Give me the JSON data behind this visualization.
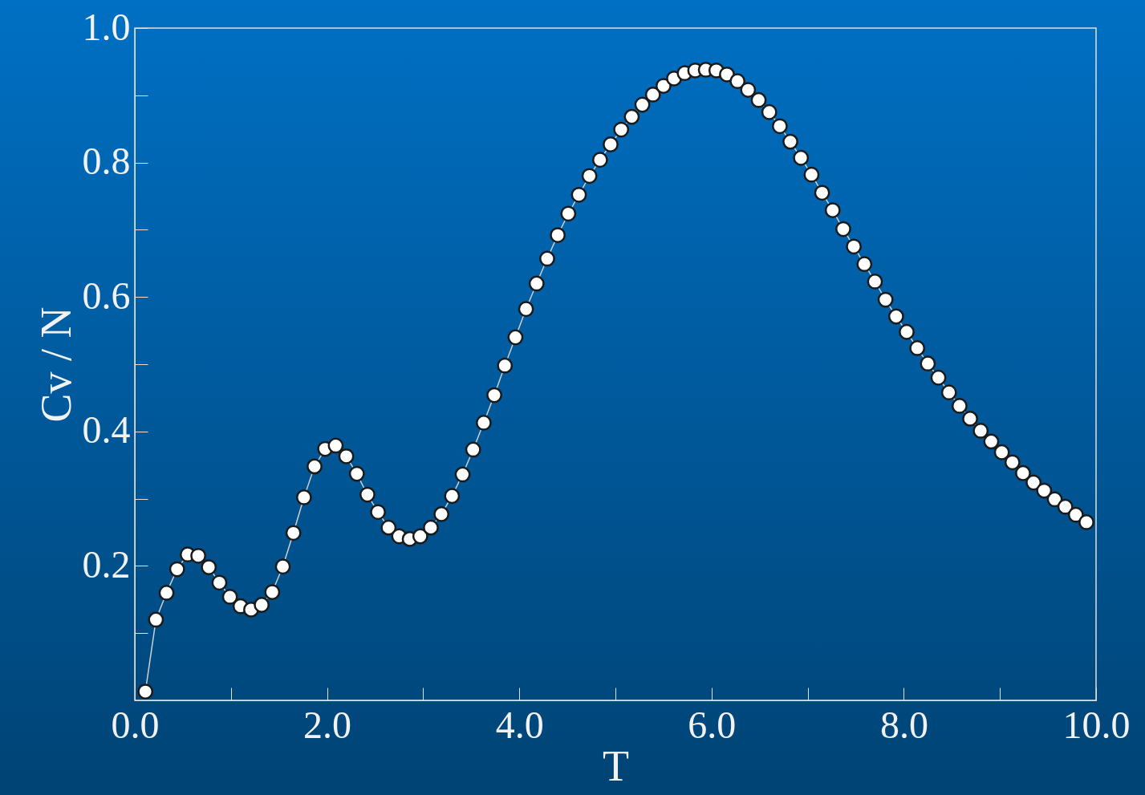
{
  "chart_data": {
    "type": "line",
    "xlabel": "T",
    "ylabel": "Cv / N",
    "x": [
      0.11,
      0.22,
      0.33,
      0.44,
      0.55,
      0.66,
      0.77,
      0.88,
      0.99,
      1.1,
      1.21,
      1.32,
      1.43,
      1.54,
      1.65,
      1.76,
      1.87,
      1.98,
      2.09,
      2.2,
      2.31,
      2.42,
      2.53,
      2.64,
      2.75,
      2.86,
      2.97,
      3.08,
      3.19,
      3.3,
      3.41,
      3.52,
      3.63,
      3.74,
      3.85,
      3.96,
      4.07,
      4.18,
      4.29,
      4.4,
      4.51,
      4.62,
      4.73,
      4.84,
      4.95,
      5.06,
      5.17,
      5.28,
      5.39,
      5.5,
      5.61,
      5.72,
      5.83,
      5.94,
      6.05,
      6.16,
      6.27,
      6.38,
      6.49,
      6.6,
      6.71,
      6.82,
      6.93,
      7.04,
      7.15,
      7.26,
      7.37,
      7.48,
      7.59,
      7.7,
      7.81,
      7.92,
      8.03,
      8.14,
      8.25,
      8.36,
      8.47,
      8.58,
      8.69,
      8.8,
      8.91,
      9.02,
      9.13,
      9.24,
      9.35,
      9.46,
      9.57,
      9.68,
      9.79,
      9.9
    ],
    "series": [
      {
        "color": "#ffffff",
        "values": [
          0.013,
          0.12,
          0.16,
          0.195,
          0.217,
          0.215,
          0.198,
          0.175,
          0.154,
          0.14,
          0.135,
          0.142,
          0.161,
          0.199,
          0.249,
          0.302,
          0.348,
          0.374,
          0.379,
          0.363,
          0.337,
          0.306,
          0.28,
          0.257,
          0.244,
          0.24,
          0.244,
          0.257,
          0.277,
          0.304,
          0.336,
          0.373,
          0.413,
          0.454,
          0.498,
          0.54,
          0.582,
          0.62,
          0.657,
          0.692,
          0.724,
          0.752,
          0.78,
          0.804,
          0.827,
          0.849,
          0.868,
          0.886,
          0.901,
          0.914,
          0.925,
          0.933,
          0.937,
          0.938,
          0.937,
          0.931,
          0.921,
          0.908,
          0.893,
          0.875,
          0.854,
          0.831,
          0.807,
          0.782,
          0.755,
          0.729,
          0.701,
          0.675,
          0.649,
          0.623,
          0.596,
          0.571,
          0.548,
          0.524,
          0.501,
          0.48,
          0.458,
          0.438,
          0.419,
          0.401,
          0.385,
          0.369,
          0.354,
          0.338,
          0.324,
          0.312,
          0.299,
          0.288,
          0.276,
          0.265
        ]
      }
    ],
    "xlim": [
      0,
      10
    ],
    "xticks": [
      {
        "value": 0,
        "label": "0.0"
      },
      {
        "value": 1,
        "label": null
      },
      {
        "value": 2,
        "label": "2.0"
      },
      {
        "value": 3,
        "label": null
      },
      {
        "value": 4,
        "label": "4.0"
      },
      {
        "value": 5,
        "label": null
      },
      {
        "value": 6,
        "label": "6.0"
      },
      {
        "value": 7,
        "label": null
      },
      {
        "value": 8,
        "label": "8.0"
      },
      {
        "value": 9,
        "label": null
      },
      {
        "value": 10,
        "label": "10.0"
      }
    ],
    "ylim": [
      0,
      1
    ],
    "yticks": [
      {
        "value": 0,
        "label": null
      },
      {
        "value": 0.1,
        "label": null
      },
      0.2,
      {
        "value": 0.3,
        "label": null
      },
      0.4,
      {
        "value": 0.5,
        "label": null
      },
      0.6,
      {
        "value": 0.7,
        "label": null
      },
      0.8,
      {
        "value": 0.9,
        "label": null
      },
      {
        "value": 1,
        "label": "1.0"
      }
    ],
    "marker": "circle",
    "line_style": "solid",
    "grid": false
  }
}
